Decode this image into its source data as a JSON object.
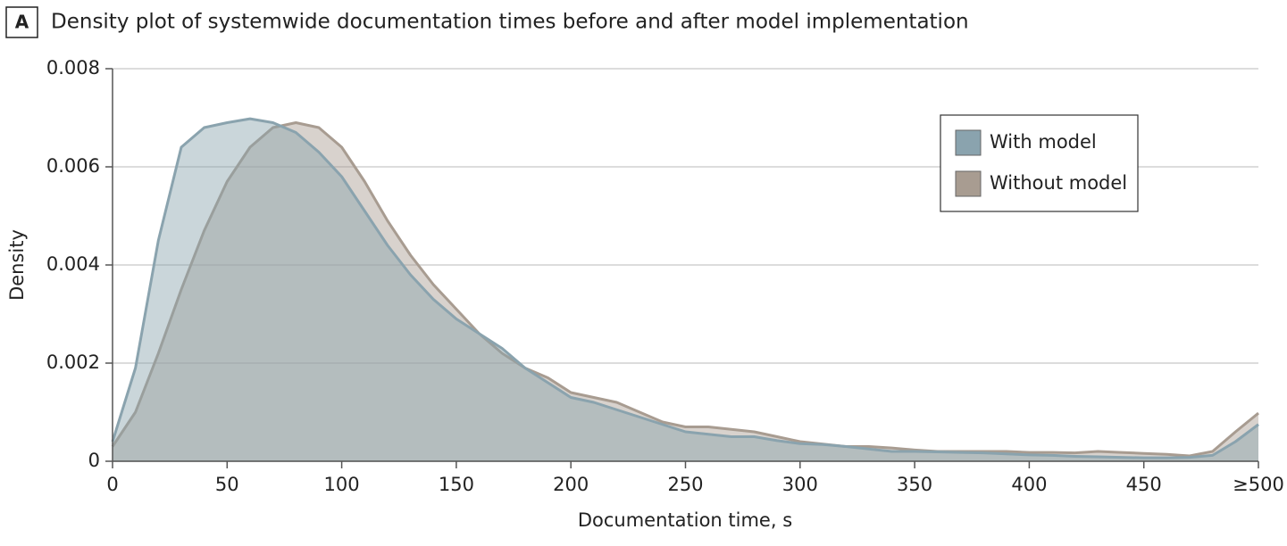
{
  "chart_data": {
    "type": "area",
    "panel_label": "A",
    "title": "Density plot of systemwide documentation times before and after model implementation",
    "x_label": "Documentation time, s",
    "y_label": "Density",
    "x": [
      0,
      10,
      20,
      30,
      40,
      50,
      60,
      70,
      80,
      90,
      100,
      110,
      120,
      130,
      140,
      150,
      160,
      170,
      180,
      190,
      200,
      210,
      220,
      230,
      240,
      250,
      260,
      270,
      280,
      290,
      300,
      310,
      320,
      330,
      340,
      350,
      360,
      370,
      380,
      390,
      400,
      410,
      420,
      430,
      440,
      450,
      460,
      470,
      480,
      490,
      500
    ],
    "series": [
      {
        "name": "Without model",
        "color": "#a89c91",
        "values": [
          0.0003,
          0.001,
          0.0022,
          0.0035,
          0.0047,
          0.0057,
          0.0064,
          0.0068,
          0.0069,
          0.0068,
          0.0064,
          0.0057,
          0.0049,
          0.0042,
          0.0036,
          0.0031,
          0.0026,
          0.0022,
          0.0019,
          0.0017,
          0.0014,
          0.0013,
          0.0012,
          0.001,
          0.0008,
          0.0007,
          0.0007,
          0.00065,
          0.0006,
          0.0005,
          0.0004,
          0.00035,
          0.0003,
          0.0003,
          0.00027,
          0.00023,
          0.0002,
          0.0002,
          0.0002,
          0.0002,
          0.00018,
          0.00018,
          0.00017,
          0.0002,
          0.00018,
          0.00016,
          0.00014,
          0.00011,
          0.0002,
          0.0006,
          0.00098
        ]
      },
      {
        "name": "With model",
        "color": "#8aa3ae",
        "values": [
          0.0004,
          0.0019,
          0.0045,
          0.0064,
          0.0068,
          0.0069,
          0.00698,
          0.0069,
          0.0067,
          0.0063,
          0.0058,
          0.0051,
          0.0044,
          0.0038,
          0.0033,
          0.0029,
          0.0026,
          0.0023,
          0.0019,
          0.0016,
          0.0013,
          0.0012,
          0.00105,
          0.0009,
          0.00075,
          0.0006,
          0.00055,
          0.0005,
          0.0005,
          0.00042,
          0.00036,
          0.00034,
          0.0003,
          0.00025,
          0.0002,
          0.0002,
          0.00019,
          0.00018,
          0.00017,
          0.00015,
          0.00013,
          0.00012,
          0.0001,
          9e-05,
          8e-05,
          7e-05,
          7e-05,
          8e-05,
          0.00012,
          0.0004,
          0.00075
        ]
      }
    ],
    "xlim": [
      0,
      500
    ],
    "xticks": [
      0,
      50,
      100,
      150,
      200,
      250,
      300,
      350,
      400,
      450,
      {
        "value": 500,
        "label": "≥500"
      }
    ],
    "ylim": [
      0,
      0.008
    ],
    "yticks": [
      0,
      0.002,
      0.004,
      0.006,
      0.008
    ],
    "grid": true,
    "legend_position": "upper-right"
  }
}
